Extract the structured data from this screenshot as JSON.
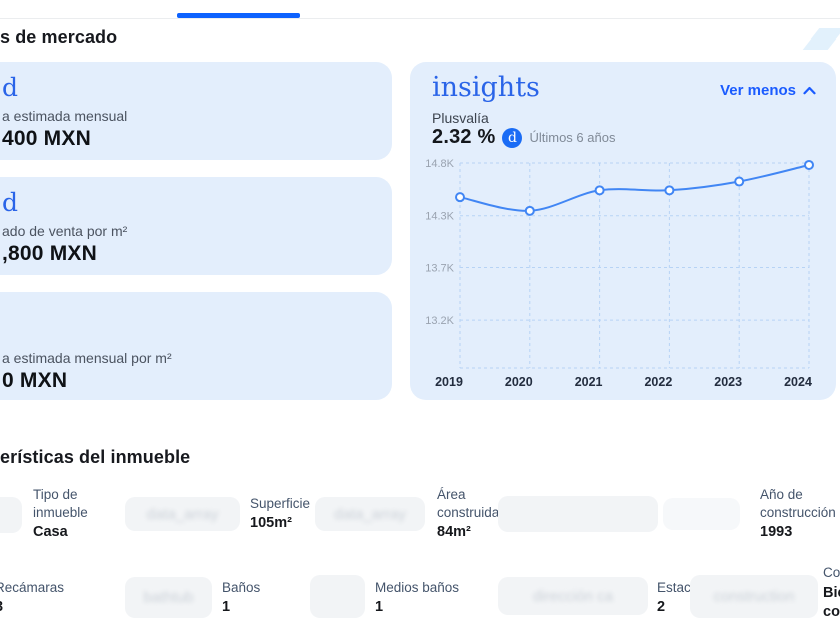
{
  "header": {
    "title": "s de mercado"
  },
  "market_cards": [
    {
      "logo": "d",
      "label": "a estimada mensual",
      "value": "400 MXN"
    },
    {
      "logo": "d",
      "label": "ado de venta por m²",
      "value": ",800 MXN"
    },
    {
      "logo": "",
      "label": "a estimada mensual por m²",
      "value": "0 MXN"
    }
  ],
  "insights": {
    "brand": "insights",
    "collapse_label": "Ver menos",
    "metric_label": "Plusvalía",
    "metric_value": "2.32 %",
    "badge_letter": "d",
    "period_label": "Últimos 6 años"
  },
  "chart_data": {
    "type": "line",
    "title": "Plusvalía",
    "subtitle": "Últimos 6 años",
    "x": [
      "2019",
      "2020",
      "2021",
      "2022",
      "2023",
      "2024"
    ],
    "series": [
      {
        "name": "Plusvalía",
        "values": [
          14.45,
          14.31,
          14.52,
          14.52,
          14.61,
          14.78
        ]
      }
    ],
    "y_ticks": [
      {
        "label": "14.8K",
        "value": 14.8
      },
      {
        "label": "14.3K",
        "value": 14.26
      },
      {
        "label": "13.7K",
        "value": 13.73
      },
      {
        "label": "13.2K",
        "value": 13.19
      }
    ],
    "ylim": [
      12.7,
      14.8
    ],
    "grid": "dashed",
    "legend": "none",
    "line_color": "#4186f4",
    "grid_color": "#b7d3f5",
    "x_label_color": "#232d3f",
    "y_label_color": "#9aa3b0"
  },
  "features": {
    "heading": "erísticas del inmueble",
    "row1": [
      {
        "label": "Tipo de inmueble",
        "value": "Casa"
      },
      {
        "label": "Superficie",
        "value": "105m²"
      },
      {
        "label": "Área construida",
        "value": "84m²"
      },
      {
        "label": "Año de construcción",
        "value": "1993"
      }
    ],
    "row2": [
      {
        "label": "Recámaras",
        "value": "3"
      },
      {
        "label": "Baños",
        "value": "1"
      },
      {
        "label": "Medios baños",
        "value": "1"
      },
      {
        "label": "Estacionamientos",
        "value": "2"
      },
      {
        "label": "Conservación",
        "value": "Bien conservado"
      }
    ],
    "ghosts": [
      "",
      "data_array",
      "data_array",
      "",
      "",
      "bathtub",
      "",
      "dirección ca",
      "construction"
    ]
  }
}
